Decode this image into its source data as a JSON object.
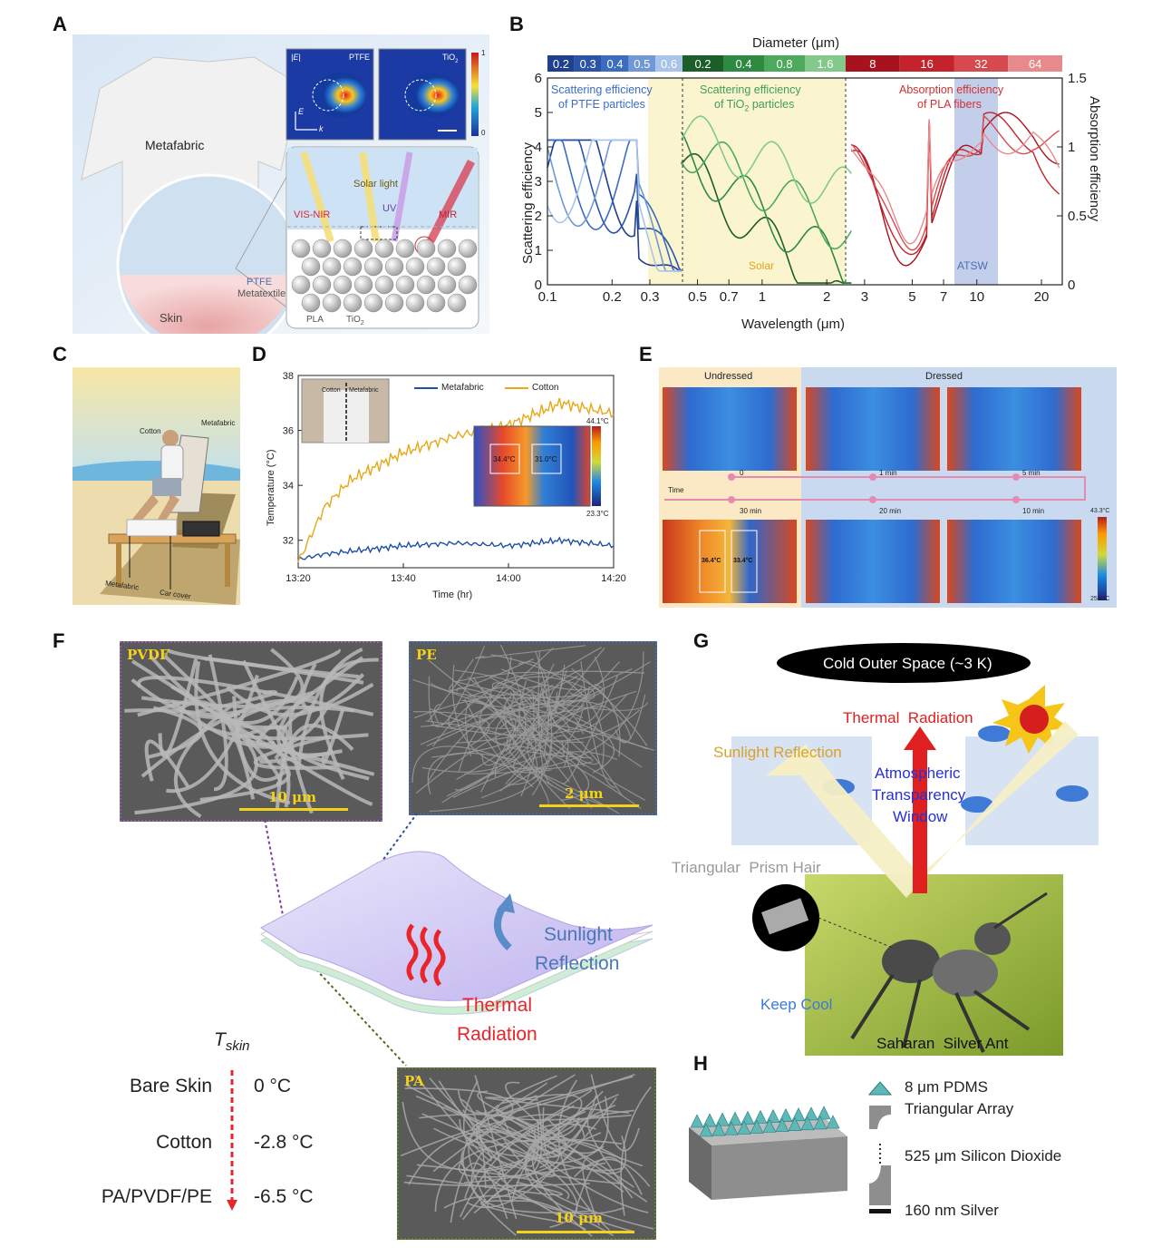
{
  "panels": {
    "a": "A",
    "b": "B",
    "c": "C",
    "d": "D",
    "e": "E",
    "f": "F",
    "g": "G",
    "h": "H"
  },
  "panel_a": {
    "metafabric": "Metafabric",
    "field_label": "|E|",
    "ptfe": "PTFE",
    "tio2": "TiO",
    "tio2_sub": "2",
    "cb_max": "1",
    "cb_min": "0",
    "e_axis": "E",
    "k_axis": "k",
    "solar_light": "Solar light",
    "visnir": "VIS-NIR",
    "uv": "UV",
    "mir": "MIR",
    "ptfe_metatextile_1": "PTFE",
    "ptfe_metatextile_2": "Metatextile",
    "skin": "Skin",
    "pla": "PLA",
    "tio2_bottom": "TiO",
    "tio2_bottom_sub": "2"
  },
  "panel_b": {
    "top_title": "Diameter (μm)",
    "ptfe_d": [
      "0.2",
      "0.3",
      "0.4",
      "0.5",
      "0.6"
    ],
    "tio2_d": [
      "0.2",
      "0.4",
      "0.8",
      "1.6"
    ],
    "pla_d": [
      "8",
      "16",
      "32",
      "64"
    ],
    "ptfe_colors": [
      "#1f3f8f",
      "#2a54a8",
      "#3a6cbf",
      "#6e98d6",
      "#a9c4ea"
    ],
    "tio2_colors": [
      "#1b5e2a",
      "#2d8a40",
      "#4daa5c",
      "#82c98a"
    ],
    "pla_colors": [
      "#a8121c",
      "#c4232b",
      "#d64a4f",
      "#e88a8c"
    ],
    "ylabel_left": "Scattering efficiency",
    "ylabel_right": "Absorption efficiency",
    "xlabel": "Wavelength (μm)",
    "left_ticks": [
      "0",
      "1",
      "2",
      "3",
      "4",
      "5",
      "6"
    ],
    "right_ticks": [
      "0",
      "0.5",
      "1",
      "1.5"
    ],
    "x_ticks": [
      "0.1",
      "0.2",
      "0.3",
      "0.5",
      "0.7",
      "1",
      "2",
      "3",
      "5",
      "7",
      "10",
      "20"
    ],
    "ann_ptfe_1": "Scattering efficiency",
    "ann_ptfe_2": "of PTFE particles",
    "ann_tio2_1": "Scattering efficiency",
    "ann_tio2_2": "particles",
    "ann_tio2_3": "of TiO",
    "ann_tio2_sub": "2",
    "ann_pla_1": "Absorption efficiency",
    "ann_pla_2": "of PLA fibers",
    "solar": "Solar",
    "atsw": "ATSW"
  },
  "panel_c": {
    "cotton": "Cotton",
    "metafabric": "Metafabric",
    "metafabric_bottom": "Metafabric",
    "car_cover": "Car cover"
  },
  "panel_d": {
    "ylabel": "Temperature (°C)",
    "xlabel": "Time (hr)",
    "y_ticks": [
      "32",
      "34",
      "36",
      "38"
    ],
    "x_ticks": [
      "13:20",
      "13:40",
      "14:00",
      "14:20"
    ],
    "legend_metafabric": "Metafabric",
    "legend_cotton": "Cotton",
    "inset_cotton": "Cotton",
    "inset_metafabric": "Metafabric",
    "thermal_left": "34.4°C",
    "thermal_right": "31.0°C",
    "cb_max": "44.1°C",
    "cb_min": "23.3°C"
  },
  "panel_e": {
    "undressed": "Undressed",
    "dressed": "Dressed",
    "time": "Time",
    "t0": "0",
    "t1": "1 min",
    "t5": "5 min",
    "t30": "30 min",
    "t20": "20 min",
    "t10": "10 min",
    "thermal_left": "36.4°C",
    "thermal_right": "33.4°C",
    "cb_max": "43.3°C",
    "cb_min": "25.0°C"
  },
  "panel_f": {
    "pvdf": "PVDF",
    "pe": "PE",
    "pa": "PA",
    "scale_pvdf": "10 μm",
    "scale_pe": "2 μm",
    "scale_pa": "10 μm",
    "sunlight_1": "Sunlight",
    "sunlight_2": "Reflection",
    "thermal_1": "Thermal",
    "thermal_2": "Radiation",
    "tskin": "T",
    "tskin_sub": "skin",
    "rows": [
      {
        "label": "Bare Skin",
        "value": "0 °C"
      },
      {
        "label": "Cotton",
        "value": "-2.8 °C"
      },
      {
        "label": "PA/PVDF/PE",
        "value": "-6.5 °C"
      }
    ]
  },
  "panel_g": {
    "cold_space": "Cold Outer Space (~3 K)",
    "thermal_radiation": "Thermal  Radiation",
    "sunlight_reflection": "Sunlight Reflection",
    "atm_1": "Atmospheric",
    "atm_2": "Transparency",
    "atm_3": "Window",
    "prism_hair": "Triangular  Prism Hair",
    "keep_cool": "Keep Cool",
    "ant": "Saharan  Silver Ant"
  },
  "panel_h": {
    "pdms_1": "8 μm PDMS",
    "pdms_2": "Triangular Array",
    "sio2": "525 μm Silicon Dioxide",
    "silver": "160 nm Silver"
  },
  "chart_data": [
    {
      "type": "line",
      "title": "",
      "xlabel": "Time (hr)",
      "ylabel": "Temperature (°C)",
      "ylim": [
        31,
        38
      ],
      "x_ticks": [
        "13:20",
        "13:40",
        "14:00",
        "14:20"
      ],
      "series": [
        {
          "name": "Metafabric",
          "x": [
            "13:20",
            "13:25",
            "13:30",
            "13:40",
            "13:50",
            "14:00",
            "14:10",
            "14:20"
          ],
          "values": [
            31.3,
            31.5,
            31.6,
            31.8,
            31.9,
            31.8,
            32.0,
            31.8
          ]
        },
        {
          "name": "Cotton",
          "x": [
            "13:20",
            "13:25",
            "13:30",
            "13:40",
            "13:50",
            "14:00",
            "14:10",
            "14:20"
          ],
          "values": [
            31.2,
            33.2,
            34.2,
            35.2,
            35.8,
            36.2,
            37.0,
            36.6
          ]
        }
      ]
    }
  ]
}
